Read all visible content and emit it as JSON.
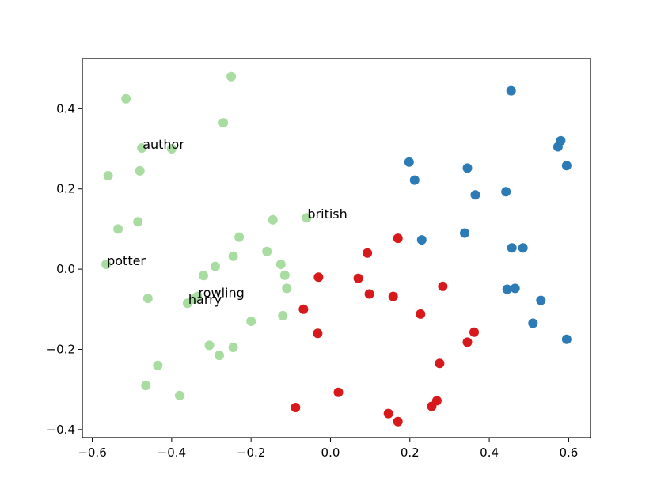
{
  "chart_data": {
    "type": "scatter",
    "title": "",
    "xlabel": "",
    "ylabel": "",
    "xlim": [
      -0.625,
      0.655
    ],
    "ylim": [
      -0.42,
      0.525
    ],
    "grid": false,
    "xticks": [
      -0.6,
      -0.4,
      -0.2,
      0.0,
      0.2,
      0.4,
      0.6
    ],
    "xtick_labels": [
      "−0.6",
      "−0.4",
      "−0.2",
      "0.0",
      "0.2",
      "0.4",
      "0.6"
    ],
    "yticks": [
      -0.4,
      -0.2,
      0.0,
      0.2,
      0.4
    ],
    "ytick_labels": [
      "−0.4",
      "−0.2",
      "0.0",
      "0.2",
      "0.4"
    ],
    "series": [
      {
        "color": "#a8dca0",
        "points": [
          [
            -0.25,
            0.48
          ],
          [
            -0.515,
            0.425
          ],
          [
            -0.27,
            0.365
          ],
          [
            -0.475,
            0.302
          ],
          [
            -0.4,
            0.3
          ],
          [
            -0.48,
            0.245
          ],
          [
            -0.56,
            0.233
          ],
          [
            -0.145,
            0.123
          ],
          [
            -0.06,
            0.128
          ],
          [
            -0.485,
            0.118
          ],
          [
            -0.535,
            0.1
          ],
          [
            -0.23,
            0.08
          ],
          [
            -0.565,
            0.012
          ],
          [
            -0.245,
            0.032
          ],
          [
            -0.16,
            0.044
          ],
          [
            -0.125,
            0.012
          ],
          [
            -0.29,
            0.007
          ],
          [
            -0.115,
            -0.015
          ],
          [
            -0.32,
            -0.016
          ],
          [
            -0.11,
            -0.048
          ],
          [
            -0.335,
            -0.068
          ],
          [
            -0.345,
            -0.075
          ],
          [
            -0.36,
            -0.085
          ],
          [
            -0.46,
            -0.073
          ],
          [
            -0.12,
            -0.116
          ],
          [
            -0.2,
            -0.13
          ],
          [
            -0.305,
            -0.19
          ],
          [
            -0.245,
            -0.195
          ],
          [
            -0.28,
            -0.215
          ],
          [
            -0.435,
            -0.24
          ],
          [
            -0.465,
            -0.29
          ],
          [
            -0.38,
            -0.315
          ]
        ]
      },
      {
        "color": "#d7191c",
        "points": [
          [
            0.17,
            0.077
          ],
          [
            0.093,
            0.04
          ],
          [
            -0.03,
            -0.02
          ],
          [
            0.07,
            -0.023
          ],
          [
            0.098,
            -0.062
          ],
          [
            0.158,
            -0.068
          ],
          [
            0.283,
            -0.043
          ],
          [
            -0.068,
            -0.1
          ],
          [
            0.227,
            -0.112
          ],
          [
            -0.032,
            -0.16
          ],
          [
            0.362,
            -0.157
          ],
          [
            0.345,
            -0.182
          ],
          [
            0.275,
            -0.235
          ],
          [
            0.02,
            -0.307
          ],
          [
            0.268,
            -0.328
          ],
          [
            -0.088,
            -0.345
          ],
          [
            0.255,
            -0.342
          ],
          [
            0.146,
            -0.36
          ],
          [
            0.17,
            -0.38
          ]
        ]
      },
      {
        "color": "#2c7bb6",
        "points": [
          [
            0.455,
            0.445
          ],
          [
            0.58,
            0.32
          ],
          [
            0.573,
            0.305
          ],
          [
            0.198,
            0.267
          ],
          [
            0.345,
            0.252
          ],
          [
            0.595,
            0.258
          ],
          [
            0.212,
            0.222
          ],
          [
            0.442,
            0.193
          ],
          [
            0.365,
            0.185
          ],
          [
            0.23,
            0.073
          ],
          [
            0.338,
            0.09
          ],
          [
            0.457,
            0.053
          ],
          [
            0.485,
            0.053
          ],
          [
            0.445,
            -0.05
          ],
          [
            0.465,
            -0.048
          ],
          [
            0.53,
            -0.078
          ],
          [
            0.51,
            -0.135
          ],
          [
            0.595,
            -0.175
          ]
        ]
      }
    ],
    "annotations": [
      {
        "text": "author",
        "x": -0.475,
        "y": 0.302
      },
      {
        "text": "british",
        "x": -0.06,
        "y": 0.128
      },
      {
        "text": "potter",
        "x": -0.565,
        "y": 0.012
      },
      {
        "text": "rowling",
        "x": -0.335,
        "y": -0.068
      },
      {
        "text": "harry",
        "x": -0.36,
        "y": -0.085
      }
    ]
  }
}
